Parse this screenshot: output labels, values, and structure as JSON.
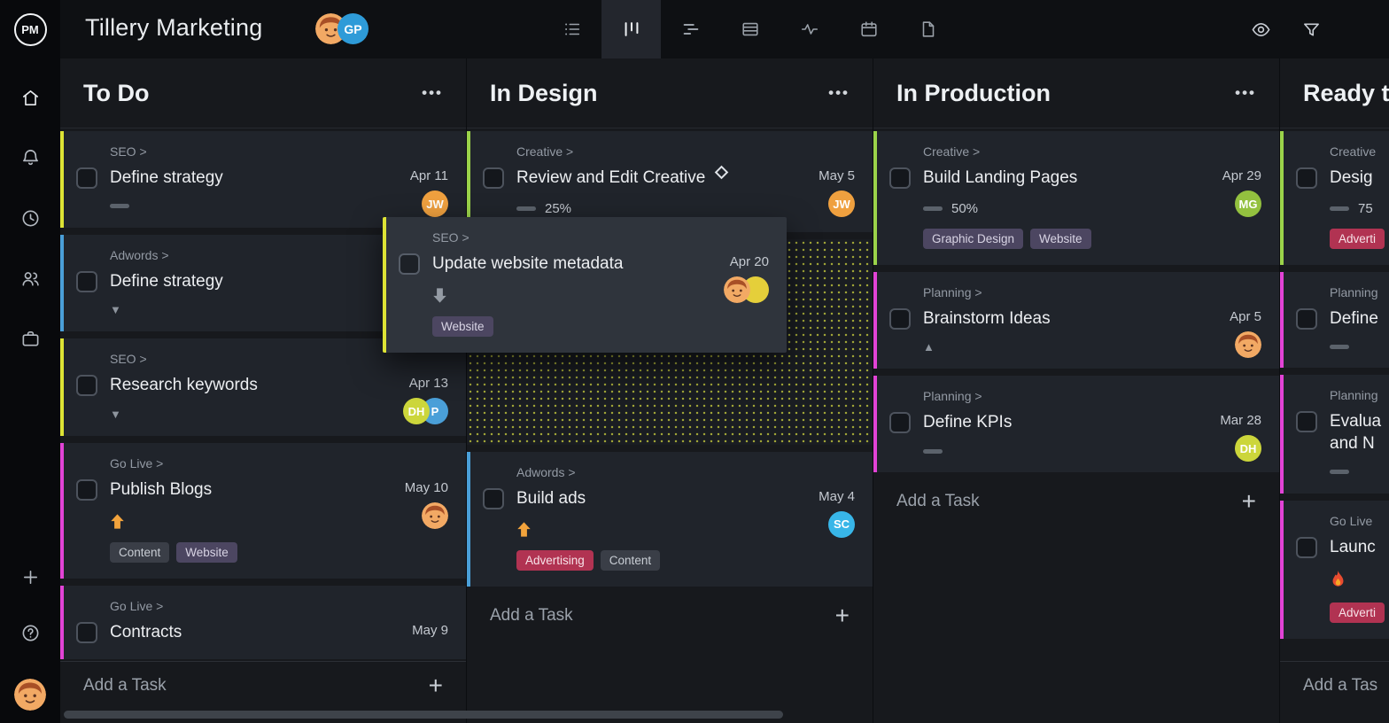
{
  "brand": {
    "logo": "PM"
  },
  "glyphs": {
    "menu": "•••",
    "plus": "+",
    "tri_down": "▼",
    "tri_up": "▲"
  },
  "sidebar": {
    "nav_icons": [
      "home-icon",
      "bell-icon",
      "clock-icon",
      "team-icon",
      "briefcase-icon"
    ],
    "bottom_icons": [
      "plus-icon",
      "help-icon"
    ]
  },
  "header": {
    "title": "Tillery Marketing",
    "members": [
      {
        "type": "face"
      },
      {
        "type": "initials",
        "text": "GP",
        "bg": "#2e9bd8"
      }
    ],
    "view_tabs": [
      {
        "icon": "list-view-icon",
        "active": false
      },
      {
        "icon": "board-view-icon",
        "active": true
      },
      {
        "icon": "gantt-view-icon",
        "active": false
      },
      {
        "icon": "sheet-view-icon",
        "active": false
      },
      {
        "icon": "activity-view-icon",
        "active": false
      },
      {
        "icon": "calendar-view-icon",
        "active": false
      },
      {
        "icon": "doc-view-icon",
        "active": false
      }
    ],
    "right_icons": [
      "eye-icon",
      "filter-icon"
    ]
  },
  "board": {
    "columns": [
      {
        "title": "To Do",
        "add_task_label": "Add a Task",
        "add_pinned": true,
        "cards": [
          {
            "border": "#dde335",
            "category": "SEO >",
            "title": "Define strategy",
            "date": "Apr 11",
            "assignees": [
              {
                "type": "initials",
                "text": "JW",
                "bg": "#efa03f"
              }
            ],
            "progress_bar": true
          },
          {
            "border": "#4a9fd8",
            "category": "Adwords >",
            "title": "Define strategy",
            "arrow": "tri-down"
          },
          {
            "border": "#dde335",
            "category": "SEO >",
            "title": "Research keywords",
            "date": "Apr 13",
            "assignees": [
              {
                "type": "initials",
                "text": "DH",
                "bg": "#ccd63b"
              },
              {
                "type": "initials",
                "text": "P",
                "bg": "#4a9fd8"
              }
            ],
            "arrow": "tri-down"
          },
          {
            "border": "#e243d6",
            "category": "Go Live >",
            "title": "Publish Blogs",
            "date": "May 10",
            "assignees": [
              {
                "type": "face"
              }
            ],
            "arrow": "up-orange",
            "tags": [
              {
                "label": "Content",
                "bg": "#3a3e47",
                "fg": "#c9ced5"
              },
              {
                "label": "Website",
                "bg": "#4c4661",
                "fg": "#d8d4e4"
              }
            ]
          },
          {
            "border": "#e243d6",
            "category": "Go Live >",
            "title": "Contracts",
            "date": "May 9"
          }
        ]
      },
      {
        "title": "In Design",
        "add_task_label": "Add a Task",
        "add_pinned": false,
        "cards": [
          {
            "border": "#9bd34a",
            "category": "Creative >",
            "title": "Review and Edit Creative",
            "milestone": true,
            "date": "May 5",
            "assignees": [
              {
                "type": "initials",
                "text": "JW",
                "bg": "#efa03f"
              }
            ],
            "progress_bar": true,
            "progress_text": "25%"
          },
          {
            "placeholder": true
          },
          {
            "border": "#4a9fd8",
            "category": "Adwords >",
            "title": "Build ads",
            "date": "May 4",
            "assignees": [
              {
                "type": "initials",
                "text": "SC",
                "bg": "#38b6e8"
              }
            ],
            "arrow": "up-orange",
            "tags": [
              {
                "label": "Advertising",
                "bg": "#b13352",
                "fg": "#f7e2e8"
              },
              {
                "label": "Content",
                "bg": "#3a3e47",
                "fg": "#c9ced5"
              }
            ]
          }
        ]
      },
      {
        "title": "In Production",
        "add_task_label": "Add a Task",
        "add_pinned": false,
        "cards": [
          {
            "border": "#9bd34a",
            "category": "Creative >",
            "title": "Build Landing Pages",
            "date": "Apr 29",
            "assignees": [
              {
                "type": "initials",
                "text": "MG",
                "bg": "#93c13f"
              }
            ],
            "progress_bar": true,
            "progress_text": "50%",
            "tags": [
              {
                "label": "Graphic Design",
                "bg": "#4c4661",
                "fg": "#d8d4e4"
              },
              {
                "label": "Website",
                "bg": "#4c4661",
                "fg": "#d8d4e4"
              }
            ]
          },
          {
            "border": "#e243d6",
            "category": "Planning >",
            "title": "Brainstorm Ideas",
            "date": "Apr 5",
            "assignees": [
              {
                "type": "face"
              }
            ],
            "arrow": "tri-up"
          },
          {
            "border": "#e243d6",
            "category": "Planning >",
            "title": "Define KPIs",
            "date": "Mar 28",
            "assignees": [
              {
                "type": "initials",
                "text": "DH",
                "bg": "#ccd63b"
              }
            ],
            "progress_bar": true
          }
        ]
      },
      {
        "title": "Ready t",
        "add_task_label": "Add a Tas",
        "add_pinned": true,
        "cards": [
          {
            "border": "#9bd34a",
            "category": "Creative",
            "title": "Desig",
            "progress_bar": true,
            "progress_text": "75",
            "tags": [
              {
                "label": "Adverti",
                "bg": "#b13352",
                "fg": "#f7e2e8"
              }
            ]
          },
          {
            "border": "#e243d6",
            "category": "Planning",
            "title": "Define",
            "progress_bar": true
          },
          {
            "border": "#e243d6",
            "category": "Planning",
            "title": "Evalua\nand N",
            "progress_bar": true
          },
          {
            "border": "#e243d6",
            "category": "Go Live",
            "title": "Launc",
            "arrow": "flame",
            "tags": [
              {
                "label": "Adverti",
                "bg": "#b13352",
                "fg": "#f7e2e8"
              }
            ]
          }
        ]
      }
    ]
  },
  "drag_card": {
    "border": "#dde335",
    "category": "SEO >",
    "title": "Update website metadata",
    "date": "Apr 20",
    "assignees": [
      {
        "type": "face"
      },
      {
        "type": "color",
        "bg": "#e5cf3a"
      }
    ],
    "arrow": "down-gray",
    "tags": [
      {
        "label": "Website",
        "bg": "#4c4661",
        "fg": "#d8d4e4"
      }
    ]
  },
  "colors": {
    "lane_yellow": "#dde335",
    "lane_blue": "#4a9fd8",
    "lane_magenta": "#e243d6",
    "lane_green": "#9bd34a",
    "priority_orange": "#f2a33c",
    "tag_red": "#b13352",
    "tag_purple": "#4c4661",
    "tag_dark": "#3a3e47"
  }
}
